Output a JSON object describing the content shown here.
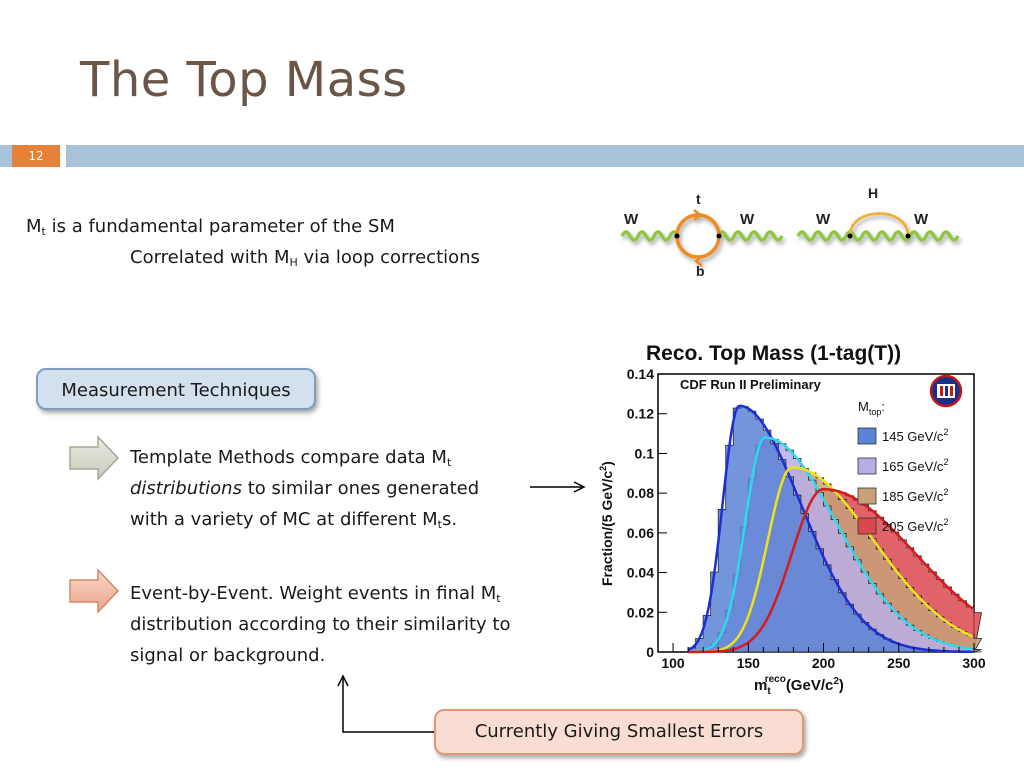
{
  "slide": {
    "title": "The Top Mass",
    "page_number": "12"
  },
  "intro": {
    "line1_sym": "M",
    "line1_sub": "t",
    "line1_rest": "is a fundamental parameter of the SM",
    "line2_pre": "Correlated with M",
    "line2_sub": "H",
    "line2_rest": "via loop corrections"
  },
  "measurement_box": "Measurement Techniques",
  "template_method": {
    "l1_pre": "Template Methods compare data M",
    "l1_sub": "t",
    "l2_italic": "distributions",
    "l2_rest": "to similar ones generated",
    "l3_pre": "with a variety of MC at different M",
    "l3_sub": "t",
    "l3_post": "s."
  },
  "event_method": {
    "l1_pre": "Event-by-Event. Weight events in final M",
    "l1_sub": "t",
    "l2": "distribution according to their similarity to",
    "l3": "signal or background."
  },
  "smallest_errors_box": "Currently Giving Smallest Errors",
  "feynman": {
    "d1_left": "W",
    "d1_right": "W",
    "d1_top": "t",
    "d1_bottom": "b",
    "d2_left": "W",
    "d2_right": "W",
    "d2_top": "H"
  },
  "colors": {
    "title": "#6b5546",
    "accent_orange": "#e6813a",
    "band_blue": "#a8c2da"
  },
  "chart_data": {
    "type": "area",
    "title": "Reco. Top Mass (1-tag(T))",
    "annotation": "CDF Run II Preliminary",
    "xlabel_main": "m",
    "xlabel_sub": "t",
    "xlabel_sup": "reco",
    "xlabel_unit": "(GeV/c",
    "xlabel_unit_sup": "2",
    "xlabel_unit_close": ")",
    "ylabel": "Fraction/(5 GeV/c",
    "ylabel_sup": "2",
    "ylabel_close": ")",
    "xlim": [
      90,
      300
    ],
    "ylim": [
      0,
      0.14
    ],
    "xticks": [
      100,
      150,
      200,
      250,
      300
    ],
    "yticks": [
      0,
      0.02,
      0.04,
      0.06,
      0.08,
      0.1,
      0.12,
      0.14
    ],
    "ytick_labels": [
      "0",
      "0.02",
      "0.04",
      "0.06",
      "0.08",
      "0.1",
      "0.12",
      "0.14"
    ],
    "legend_title_main": "M",
    "legend_title_sub": "top",
    "legend_title_end": ":",
    "legend_position": "top-right",
    "series": [
      {
        "name": "145 GeV/c",
        "sup": "2",
        "peak_x": 144,
        "peak_y": 0.124,
        "width_left": 11,
        "width_right": 24,
        "fill": "#5b83d6",
        "line": "#1a2fd6"
      },
      {
        "name": "165 GeV/c",
        "sup": "2",
        "peak_x": 161,
        "peak_y": 0.108,
        "width_left": 13,
        "width_right": 28,
        "fill": "#b7aee6",
        "line": "#2fd8e8"
      },
      {
        "name": "185 GeV/c",
        "sup": "2",
        "peak_x": 179,
        "peak_y": 0.093,
        "width_left": 16,
        "width_right": 32,
        "fill": "#c9a07a",
        "line": "#f0e21a"
      },
      {
        "name": "205 GeV/c",
        "sup": "2",
        "peak_x": 200,
        "peak_y": 0.082,
        "width_left": 21,
        "width_right": 36,
        "fill": "#d9484d",
        "line": "#d41c1c"
      }
    ]
  }
}
